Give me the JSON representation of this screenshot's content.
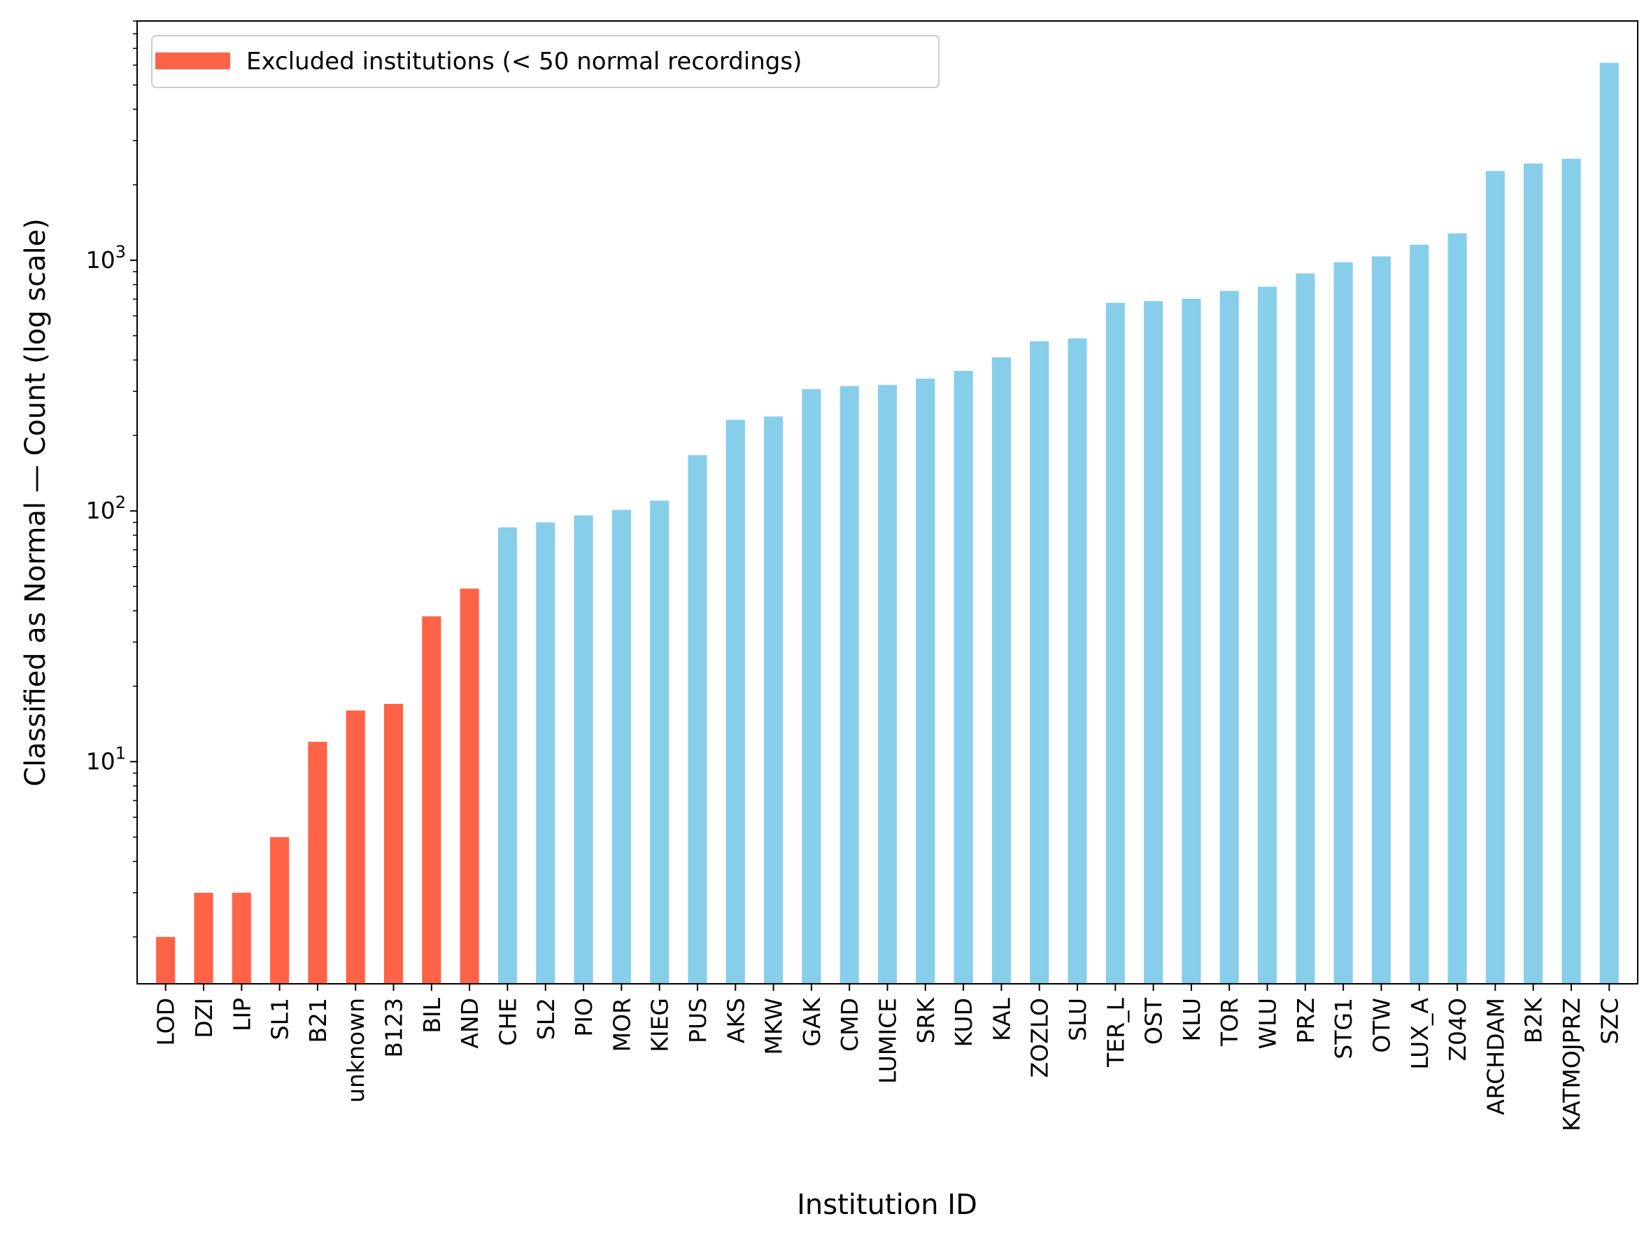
{
  "chart_data": {
    "type": "bar",
    "title": "",
    "xlabel": "Institution ID",
    "ylabel": "Classified as Normal — Count (log scale)",
    "yscale": "log",
    "ylim": [
      1.3,
      9000
    ],
    "y_major_ticks": [
      {
        "value": 10,
        "base": "10",
        "exp": "1"
      },
      {
        "value": 100,
        "base": "10",
        "exp": "2"
      },
      {
        "value": 1000,
        "base": "10",
        "exp": "3"
      }
    ],
    "grid": false,
    "legend": {
      "placement": "top-left",
      "entries": [
        {
          "label": "Excluded institutions (< 50 normal recordings)",
          "color": "#ff6347"
        }
      ]
    },
    "colors": {
      "excluded": "#ff6347",
      "included": "#87ceeb"
    },
    "categories": [
      "LOD",
      "DZI",
      "LIP",
      "SL1",
      "B21",
      "unknown",
      "B123",
      "BIL",
      "AND",
      "CHE",
      "SL2",
      "PIO",
      "MOR",
      "KIEG",
      "PUS",
      "AKS",
      "MKW",
      "GAK",
      "CMD",
      "LUMICE",
      "SRK",
      "KUD",
      "KAL",
      "ZOZLO",
      "SLU",
      "TER_L",
      "OST",
      "KLU",
      "TOR",
      "WLU",
      "PRZ",
      "STG1",
      "OTW",
      "LUX_A",
      "Z04O",
      "ARCHDAM",
      "B2K",
      "KATMOJPRZ",
      "SZC"
    ],
    "values": [
      2,
      3,
      3,
      5,
      12,
      16,
      17,
      38,
      49,
      86,
      90,
      96,
      101,
      110,
      167,
      231,
      238,
      306,
      315,
      318,
      337,
      362,
      410,
      475,
      488,
      676,
      687,
      702,
      755,
      784,
      886,
      982,
      1036,
      1153,
      1280,
      2270,
      2430,
      2540,
      6130
    ],
    "excluded": [
      true,
      true,
      true,
      true,
      true,
      true,
      true,
      true,
      true,
      false,
      false,
      false,
      false,
      false,
      false,
      false,
      false,
      false,
      false,
      false,
      false,
      false,
      false,
      false,
      false,
      false,
      false,
      false,
      false,
      false,
      false,
      false,
      false,
      false,
      false,
      false,
      false,
      false,
      false
    ]
  }
}
